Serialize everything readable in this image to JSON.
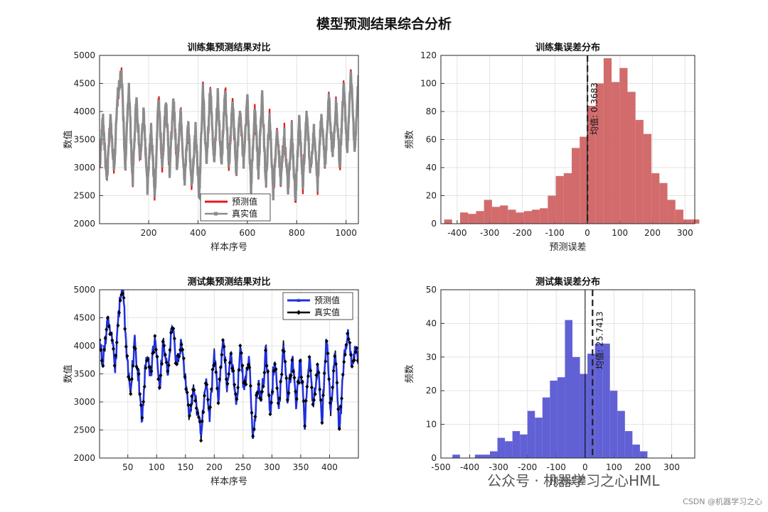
{
  "figure": {
    "title": "模型预测结果综合分析",
    "watermark_brand": "公众号 · 机器学习之心HML",
    "watermark_site": "CSDN @机器学习之心"
  },
  "chart_data": [
    {
      "id": "train_series",
      "type": "line",
      "title": "训练集预测结果对比",
      "xlabel": "样本序号",
      "ylabel": "数值",
      "xlim": [
        1,
        1050
      ],
      "ylim": [
        2000,
        5000
      ],
      "xticks": [
        200,
        400,
        600,
        800,
        1000
      ],
      "yticks": [
        2000,
        2500,
        3000,
        3500,
        4000,
        4500,
        5000
      ],
      "grid": true,
      "legend_position": "bottom-center",
      "series": [
        {
          "name": "预测值",
          "color": "#e41a1c"
        },
        {
          "name": "真实值",
          "color": "#8c8c8c"
        }
      ],
      "sample_count": 1050,
      "keypoints": [
        [
          1,
          3000
        ],
        [
          15,
          3900
        ],
        [
          30,
          2700
        ],
        [
          45,
          3900
        ],
        [
          60,
          3000
        ],
        [
          75,
          4300
        ],
        [
          90,
          4700
        ],
        [
          105,
          3000
        ],
        [
          120,
          4500
        ],
        [
          135,
          2700
        ],
        [
          150,
          4300
        ],
        [
          165,
          3100
        ],
        [
          180,
          4000
        ],
        [
          195,
          2600
        ],
        [
          210,
          3700
        ],
        [
          225,
          2500
        ],
        [
          240,
          4300
        ],
        [
          255,
          3000
        ],
        [
          270,
          4200
        ],
        [
          285,
          2900
        ],
        [
          300,
          4300
        ],
        [
          315,
          3000
        ],
        [
          330,
          4000
        ],
        [
          345,
          2700
        ],
        [
          360,
          3800
        ],
        [
          375,
          2600
        ],
        [
          390,
          3700
        ],
        [
          405,
          2500
        ],
        [
          420,
          4400
        ],
        [
          435,
          3000
        ],
        [
          450,
          4500
        ],
        [
          465,
          3100
        ],
        [
          480,
          4300
        ],
        [
          495,
          3000
        ],
        [
          510,
          4400
        ],
        [
          525,
          3000
        ],
        [
          540,
          4200
        ],
        [
          555,
          2900
        ],
        [
          570,
          4100
        ],
        [
          585,
          3000
        ],
        [
          600,
          4300
        ],
        [
          615,
          2600
        ],
        [
          630,
          4100
        ],
        [
          645,
          2900
        ],
        [
          660,
          4300
        ],
        [
          675,
          2700
        ],
        [
          690,
          3900
        ],
        [
          705,
          2500
        ],
        [
          720,
          3700
        ],
        [
          735,
          2800
        ],
        [
          750,
          3600
        ],
        [
          765,
          2600
        ],
        [
          780,
          3700
        ],
        [
          795,
          2400
        ],
        [
          810,
          3900
        ],
        [
          825,
          2700
        ],
        [
          840,
          4000
        ],
        [
          855,
          2900
        ],
        [
          870,
          3700
        ],
        [
          885,
          2700
        ],
        [
          900,
          4000
        ],
        [
          915,
          3000
        ],
        [
          930,
          4300
        ],
        [
          945,
          3200
        ],
        [
          960,
          4200
        ],
        [
          975,
          3000
        ],
        [
          990,
          4500
        ],
        [
          1005,
          3300
        ],
        [
          1020,
          4700
        ],
        [
          1035,
          3200
        ],
        [
          1050,
          4600
        ]
      ]
    },
    {
      "id": "train_hist",
      "type": "bar",
      "title": "训练集误差分布",
      "xlabel": "预测误差",
      "ylabel": "频数",
      "xlim": [
        -450,
        330
      ],
      "ylim": [
        0,
        120
      ],
      "xticks": [
        -400,
        -300,
        -200,
        -100,
        0,
        100,
        200,
        300
      ],
      "yticks": [
        0,
        20,
        40,
        60,
        80,
        100,
        120
      ],
      "grid": true,
      "bar_color": "#cd5c5c",
      "bin_start": -440,
      "bin_width": 24.5,
      "counts": [
        3,
        0,
        8,
        7,
        9,
        17,
        12,
        13,
        10,
        8,
        9,
        10,
        11,
        20,
        34,
        36,
        54,
        62,
        84,
        100,
        118,
        101,
        111,
        94,
        74,
        64,
        36,
        29,
        17,
        10,
        3,
        3
      ],
      "mean": 0.3683,
      "mean_label": "均值: 0.3683",
      "zero_line": true
    },
    {
      "id": "test_series",
      "type": "line",
      "title": "测试集预测结果对比",
      "xlabel": "样本序号",
      "ylabel": "数值",
      "xlim": [
        1,
        450
      ],
      "ylim": [
        2000,
        5000
      ],
      "xticks": [
        50,
        100,
        150,
        200,
        250,
        300,
        350,
        400
      ],
      "yticks": [
        2000,
        2500,
        3000,
        3500,
        4000,
        4500,
        5000
      ],
      "grid": true,
      "legend_position": "top-right",
      "series": [
        {
          "name": "预测值",
          "color": "#1f2fdc"
        },
        {
          "name": "真实值",
          "color": "#000000"
        }
      ],
      "sample_count": 450,
      "keypoints": [
        [
          1,
          4000
        ],
        [
          8,
          3700
        ],
        [
          15,
          4500
        ],
        [
          22,
          4200
        ],
        [
          28,
          3600
        ],
        [
          35,
          4700
        ],
        [
          42,
          5000
        ],
        [
          48,
          3800
        ],
        [
          55,
          3200
        ],
        [
          62,
          4000
        ],
        [
          70,
          3300
        ],
        [
          75,
          2700
        ],
        [
          82,
          3900
        ],
        [
          90,
          3500
        ],
        [
          97,
          4200
        ],
        [
          105,
          3200
        ],
        [
          112,
          4100
        ],
        [
          120,
          3500
        ],
        [
          127,
          4400
        ],
        [
          135,
          3600
        ],
        [
          143,
          4100
        ],
        [
          150,
          3400
        ],
        [
          157,
          2700
        ],
        [
          165,
          3300
        ],
        [
          170,
          2900
        ],
        [
          177,
          2400
        ],
        [
          185,
          3400
        ],
        [
          192,
          2700
        ],
        [
          200,
          3900
        ],
        [
          207,
          3100
        ],
        [
          215,
          4100
        ],
        [
          222,
          3300
        ],
        [
          230,
          3800
        ],
        [
          238,
          2900
        ],
        [
          245,
          4000
        ],
        [
          252,
          3200
        ],
        [
          260,
          3800
        ],
        [
          267,
          2300
        ],
        [
          275,
          3300
        ],
        [
          282,
          3100
        ],
        [
          290,
          3900
        ],
        [
          297,
          2800
        ],
        [
          305,
          3800
        ],
        [
          312,
          2800
        ],
        [
          320,
          4000
        ],
        [
          328,
          3000
        ],
        [
          335,
          3800
        ],
        [
          342,
          3000
        ],
        [
          350,
          3700
        ],
        [
          357,
          2600
        ],
        [
          365,
          3800
        ],
        [
          372,
          2900
        ],
        [
          380,
          3700
        ],
        [
          387,
          2600
        ],
        [
          395,
          4200
        ],
        [
          402,
          2800
        ],
        [
          410,
          3900
        ],
        [
          417,
          2500
        ],
        [
          425,
          3700
        ],
        [
          432,
          4200
        ],
        [
          440,
          3600
        ],
        [
          445,
          4000
        ],
        [
          450,
          3600
        ]
      ]
    },
    {
      "id": "test_hist",
      "type": "bar",
      "title": "测试集误差分布",
      "xlabel": "预测误差",
      "ylabel": "频数",
      "xlim": [
        -500,
        380
      ],
      "ylim": [
        0,
        50
      ],
      "xticks": [
        -500,
        -400,
        -300,
        -200,
        -100,
        0,
        100,
        200,
        300
      ],
      "yticks": [
        0,
        10,
        20,
        30,
        40,
        50
      ],
      "grid": true,
      "bar_color": "#5050d0",
      "bin_start": -460,
      "bin_width": 26,
      "counts": [
        1,
        0,
        0,
        1,
        1,
        2,
        6,
        5,
        8,
        7,
        14,
        12,
        18,
        23,
        24,
        41,
        30,
        25,
        31,
        34,
        34,
        20,
        14,
        8,
        4,
        2
      ],
      "mean": 25.7413,
      "mean_label": "均值: 25.7413",
      "zero_line": true
    }
  ]
}
